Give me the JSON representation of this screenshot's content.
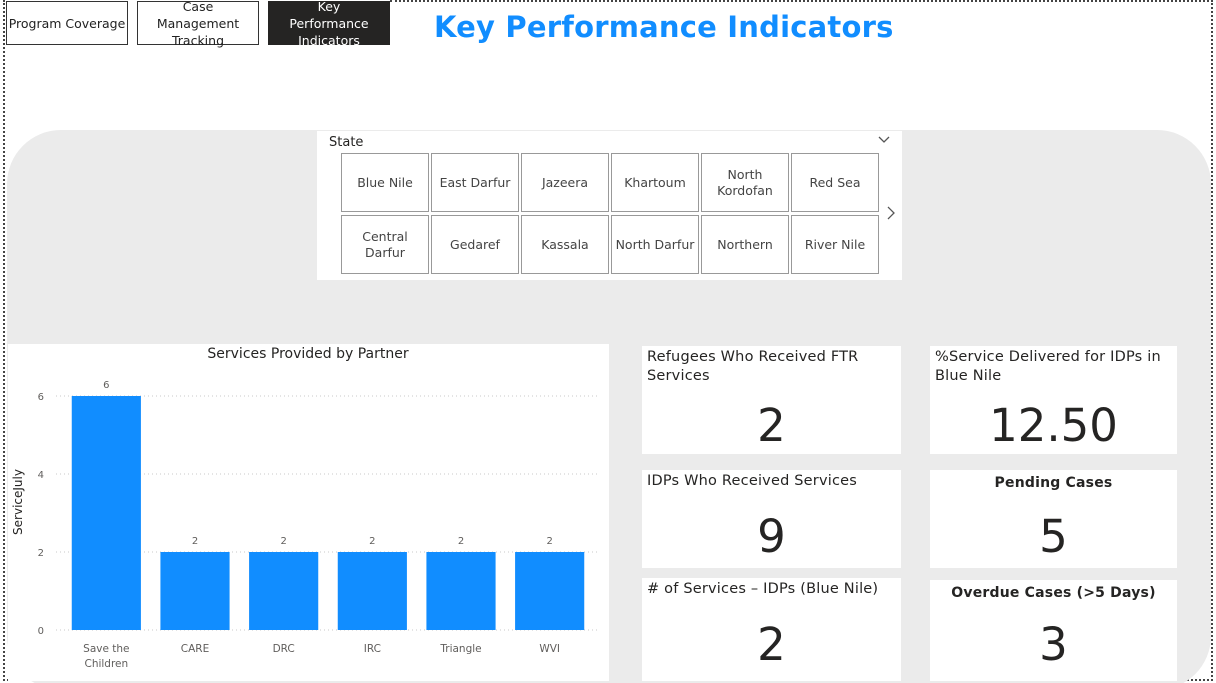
{
  "nav": {
    "program_coverage": "Program Coverage",
    "case_management": "Case Management Tracking",
    "kpi": "Key Performance Indicators"
  },
  "page_title": "Key Performance Indicators",
  "slicer": {
    "label": "State",
    "row1": [
      "Blue Nile",
      "East Darfur",
      "Jazeera",
      "Khartoum",
      "North Kordofan",
      "Red Sea"
    ],
    "row2": [
      "Central Darfur",
      "Gedaref",
      "Kassala",
      "North Darfur",
      "Northern",
      "River Nile"
    ],
    "chevron_icon": "chevron-down-icon",
    "next_icon": "chevron-right-icon"
  },
  "cards": {
    "refugees_ftr": {
      "title": "Refugees Who Received FTR Services",
      "value": "2"
    },
    "pct_service": {
      "title": "%Service Delivered for IDPs in Blue Nile",
      "value": "12.50"
    },
    "idps_services": {
      "title": "IDPs Who Received Services",
      "value": "9"
    },
    "pending": {
      "title": "Pending Cases",
      "value": "5"
    },
    "num_services": {
      "title": "# of Services – IDPs (Blue Nile)",
      "value": "2"
    },
    "overdue": {
      "title": "Overdue Cases (>5 Days)",
      "value": "3"
    }
  },
  "colors": {
    "accent": "#118DFF",
    "canvas": "#EBEBEB"
  },
  "chart_data": {
    "type": "bar",
    "title": "Services Provided by Partner",
    "xlabel": "",
    "ylabel": "ServiceJuly",
    "categories": [
      "Save the Children",
      "CARE",
      "DRC",
      "IRC",
      "Triangle",
      "WVI"
    ],
    "values": [
      6,
      2,
      2,
      2,
      2,
      2
    ],
    "ylim": [
      0,
      6
    ],
    "yticks": [
      0,
      2,
      4,
      6
    ],
    "grid": true,
    "color": "#118DFF"
  }
}
